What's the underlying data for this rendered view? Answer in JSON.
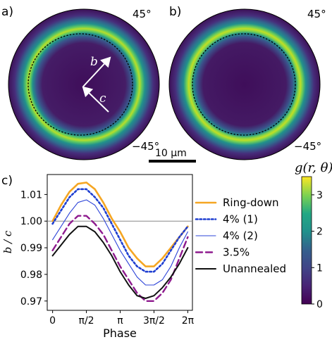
{
  "panel_labels": {
    "a": "a)",
    "b": "b)",
    "c": "c)"
  },
  "polar": {
    "angle_top": "45°",
    "angle_bottom": "−45°",
    "arrow_b": "b",
    "arrow_c": "c",
    "scalebar_label": "10 μm"
  },
  "colorbar": {
    "label": "g(r, θ)",
    "ticks": [
      "0",
      "1",
      "2",
      "3"
    ],
    "range": [
      0,
      3.5
    ],
    "colors": [
      "#440154",
      "#3b528b",
      "#21918c",
      "#5ec962",
      "#fde725"
    ]
  },
  "chart_data": {
    "type": "line",
    "xlabel": "Phase",
    "ylabel": "b / c",
    "xlim": [
      -0.25,
      6.5
    ],
    "ylim": [
      0.9665,
      1.0175
    ],
    "xticks": [
      "0",
      "π/2",
      "π",
      "3π/2",
      "2π"
    ],
    "yticks": [
      "0.97",
      "0.98",
      "0.99",
      "1.00",
      "1.01"
    ],
    "reference_line": 1.0,
    "x": [
      0,
      0.3927,
      0.7854,
      1.1781,
      1.5708,
      1.9635,
      2.3562,
      2.7489,
      3.1416,
      3.5343,
      3.927,
      4.3197,
      4.7124,
      5.1051,
      5.4978,
      5.8905,
      6.2832
    ],
    "series": [
      {
        "name": "Ring-down",
        "color": "#f5a623",
        "style": "solid",
        "width": 2.6,
        "values": [
          1.0,
          1.006,
          1.011,
          1.014,
          1.0145,
          1.012,
          1.007,
          1.001,
          0.996,
          0.99,
          0.986,
          0.983,
          0.983,
          0.986,
          0.99,
          0.994,
          0.998
        ]
      },
      {
        "name": "4% (1)",
        "color": "#1f3fd1",
        "style": "dotted",
        "width": 2.6,
        "values": [
          0.999,
          1.004,
          1.009,
          1.012,
          1.012,
          1.009,
          1.005,
          0.999,
          0.993,
          0.987,
          0.983,
          0.981,
          0.981,
          0.984,
          0.989,
          0.994,
          0.998
        ]
      },
      {
        "name": "4% (2)",
        "color": "#2d44d8",
        "style": "solid",
        "width": 1.1,
        "values": [
          0.993,
          0.998,
          1.003,
          1.007,
          1.008,
          1.006,
          1.001,
          0.995,
          0.989,
          0.984,
          0.979,
          0.976,
          0.976,
          0.978,
          0.983,
          0.99,
          0.996
        ]
      },
      {
        "name": "3.5%",
        "color": "#8e1a8e",
        "style": "dashed",
        "width": 2.4,
        "values": [
          0.989,
          0.994,
          0.999,
          1.002,
          1.002,
          0.999,
          0.995,
          0.989,
          0.983,
          0.978,
          0.973,
          0.97,
          0.97,
          0.973,
          0.978,
          0.986,
          0.994
        ]
      },
      {
        "name": "Unannealed",
        "color": "#111111",
        "style": "solid",
        "width": 2.0,
        "values": [
          0.987,
          0.991,
          0.995,
          0.998,
          0.998,
          0.996,
          0.992,
          0.987,
          0.981,
          0.976,
          0.972,
          0.971,
          0.972,
          0.975,
          0.979,
          0.984,
          0.99
        ]
      }
    ],
    "legend_position": "right"
  }
}
